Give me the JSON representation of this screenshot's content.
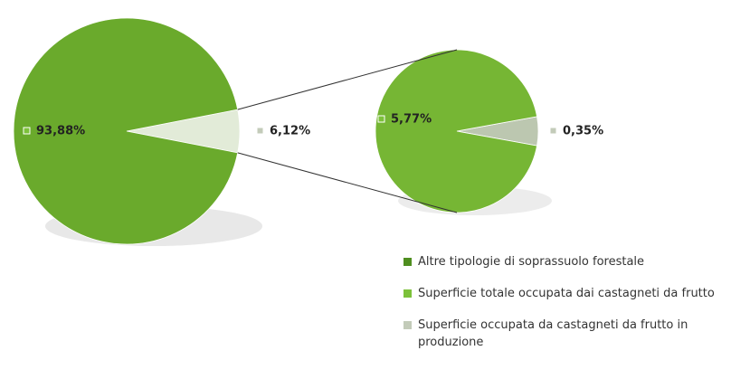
{
  "chart_data": {
    "type": "pie_of_pie",
    "categories": [
      "Altre tipologie di soprassuolo forestale",
      "Superficie totale  occupata dai castagneti da frutto",
      "Superficie occupata da castagneti da frutto in produzione"
    ],
    "legend_colors": [
      "#4f8e1f",
      "#7cc13a",
      "#c3cbb9"
    ],
    "main": {
      "values": [
        93.88,
        6.12
      ],
      "value_labels": [
        "93,88%",
        "6,12%"
      ],
      "colors": [
        "#6aaa2c",
        "#e2ebd8"
      ]
    },
    "secondary": {
      "values": [
        5.77,
        0.35
      ],
      "value_labels": [
        "5,77%",
        "0,35%"
      ],
      "colors": [
        "#76b634",
        "#bcc7b0"
      ]
    }
  }
}
